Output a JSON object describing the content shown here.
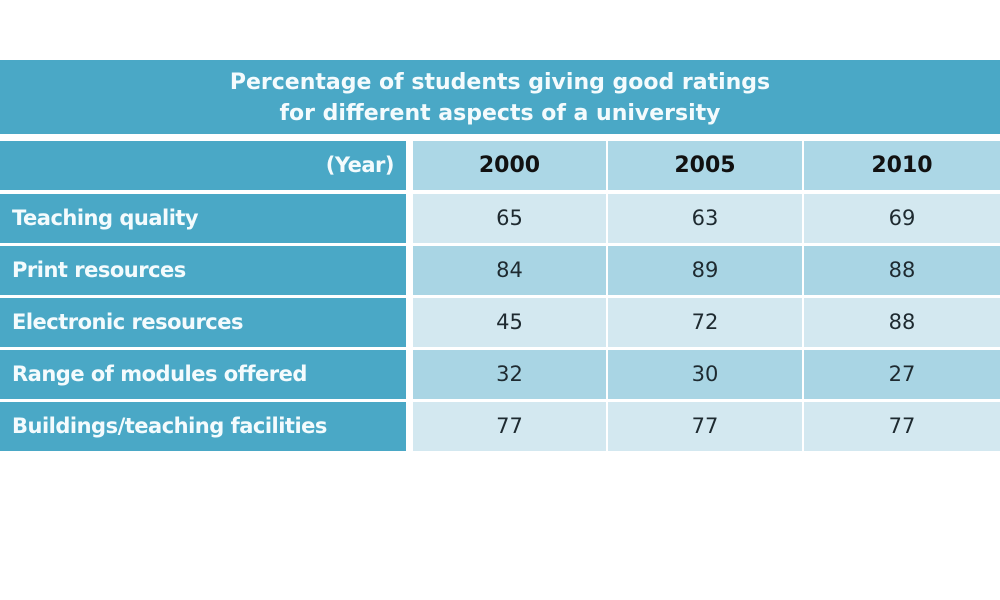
{
  "title": {
    "line1": "Percentage of students giving good ratings",
    "line2": "for different aspects of a university"
  },
  "colors": {
    "header_band": "#4aa8c6",
    "header_cell": "#acd7e6",
    "row_light": "#d3e8f0",
    "row_dark": "#a9d5e4"
  },
  "table": {
    "corner_label": "(Year)",
    "columns": [
      "2000",
      "2005",
      "2010"
    ],
    "rows": [
      {
        "label": "Teaching quality",
        "values": [
          "65",
          "63",
          "69"
        ]
      },
      {
        "label": "Print resources",
        "values": [
          "84",
          "89",
          "88"
        ]
      },
      {
        "label": "Electronic resources",
        "values": [
          "45",
          "72",
          "88"
        ]
      },
      {
        "label": "Range of modules offered",
        "values": [
          "32",
          "30",
          "27"
        ]
      },
      {
        "label": "Buildings/teaching facilities",
        "values": [
          "77",
          "77",
          "77"
        ]
      }
    ]
  },
  "chart_data": {
    "type": "table",
    "title": "Percentage of students giving good ratings for different aspects of a university",
    "xlabel": "(Year)",
    "categories": [
      "2000",
      "2005",
      "2010"
    ],
    "series": [
      {
        "name": "Teaching quality",
        "values": [
          65,
          63,
          69
        ]
      },
      {
        "name": "Print resources",
        "values": [
          84,
          89,
          88
        ]
      },
      {
        "name": "Electronic resources",
        "values": [
          45,
          72,
          88
        ]
      },
      {
        "name": "Range of modules offered",
        "values": [
          32,
          30,
          27
        ]
      },
      {
        "name": "Buildings/teaching facilities",
        "values": [
          77,
          77,
          77
        ]
      }
    ]
  }
}
